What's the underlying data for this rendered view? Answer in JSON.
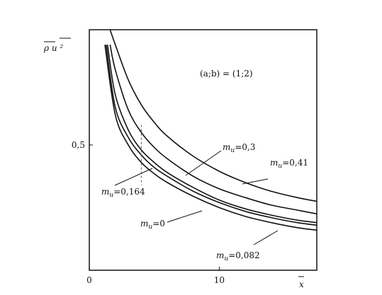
{
  "chart_data": {
    "type": "line",
    "ylabel": "ρ u ²",
    "xlabel": "x",
    "annotation": "(a;b) = (1;2)",
    "xticks": [
      "0",
      "10"
    ],
    "yticks": [
      "0,5"
    ],
    "xlim": [
      0,
      17.5
    ],
    "ylim": [
      0,
      0.96
    ],
    "grid": false,
    "series": [
      {
        "name": "m_u=0,3",
        "x": [
          1.6,
          2,
          3,
          4,
          5,
          6,
          8,
          10,
          12,
          14,
          16,
          17.5
        ],
        "y": [
          0.96,
          0.9,
          0.76,
          0.66,
          0.59,
          0.535,
          0.455,
          0.395,
          0.35,
          0.315,
          0.29,
          0.275
        ]
      },
      {
        "name": "m_u=0,41",
        "x": [
          1.6,
          2,
          3,
          4,
          5,
          6,
          8,
          10,
          12,
          14,
          16,
          17.5
        ],
        "y": [
          0.9,
          0.8,
          0.64,
          0.55,
          0.49,
          0.445,
          0.375,
          0.325,
          0.29,
          0.26,
          0.24,
          0.225
        ]
      },
      {
        "name": "m_u=0,164",
        "x": [
          1.4,
          2,
          3,
          4,
          5,
          6,
          8,
          10,
          12,
          14,
          16,
          17.5
        ],
        "y": [
          0.9,
          0.7,
          0.56,
          0.48,
          0.43,
          0.39,
          0.33,
          0.28,
          0.245,
          0.22,
          0.2,
          0.19
        ]
      },
      {
        "name": "m_u=0",
        "x": [
          1.3,
          2,
          3,
          4,
          5,
          6,
          8,
          10,
          12,
          14,
          16,
          17.5
        ],
        "y": [
          0.9,
          0.65,
          0.53,
          0.46,
          0.41,
          0.375,
          0.315,
          0.27,
          0.235,
          0.21,
          0.19,
          0.18
        ]
      },
      {
        "name": "m_u=0,082",
        "x": [
          1.2,
          2,
          3,
          4,
          5,
          6,
          8,
          10,
          12,
          14,
          16,
          17.5
        ],
        "y": [
          0.9,
          0.62,
          0.5,
          0.43,
          0.385,
          0.35,
          0.295,
          0.25,
          0.215,
          0.19,
          0.17,
          0.16
        ]
      }
    ],
    "labels": [
      {
        "text": "m_u=0,3"
      },
      {
        "text": "m_u=0,41"
      },
      {
        "text": "m_u=0,164"
      },
      {
        "text": "m_u=0"
      },
      {
        "text": "m_u=0,082"
      }
    ]
  }
}
